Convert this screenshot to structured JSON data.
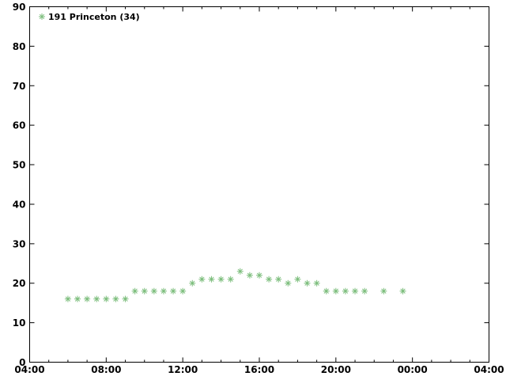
{
  "chart_data": {
    "type": "scatter",
    "title": "",
    "xlabel": "",
    "ylabel": "",
    "grid": false,
    "background": "#ffffff",
    "axis_color": "#000000",
    "text_color": "#000000",
    "x_axis": {
      "range_hours": [
        4,
        28
      ],
      "major_tick_step_hours": 4,
      "minor_tick_step_hours": 1,
      "major_tick_labels": [
        "04:00",
        "08:00",
        "12:00",
        "16:00",
        "20:00",
        "00:00",
        "04:00"
      ]
    },
    "y_axis": {
      "range": [
        0,
        90
      ],
      "tick_step": 10,
      "tick_labels": [
        "0",
        "10",
        "20",
        "30",
        "40",
        "50",
        "60",
        "70",
        "80",
        "90"
      ]
    },
    "legend": {
      "position": "top-left-inside",
      "marker": "asterisk-icon"
    },
    "series": [
      {
        "name": "191 Princeton (34)",
        "color": "#7dbe7d",
        "marker": "asterisk",
        "points": [
          [
            "06:00",
            16
          ],
          [
            "06:30",
            16
          ],
          [
            "07:00",
            16
          ],
          [
            "07:30",
            16
          ],
          [
            "08:00",
            16
          ],
          [
            "08:30",
            16
          ],
          [
            "09:00",
            16
          ],
          [
            "09:30",
            18
          ],
          [
            "10:00",
            18
          ],
          [
            "10:30",
            18
          ],
          [
            "11:00",
            18
          ],
          [
            "11:30",
            18
          ],
          [
            "12:00",
            18
          ],
          [
            "12:30",
            20
          ],
          [
            "13:00",
            21
          ],
          [
            "13:30",
            21
          ],
          [
            "14:00",
            21
          ],
          [
            "14:30",
            21
          ],
          [
            "15:00",
            23
          ],
          [
            "15:30",
            22
          ],
          [
            "16:00",
            22
          ],
          [
            "16:30",
            21
          ],
          [
            "17:00",
            21
          ],
          [
            "17:30",
            20
          ],
          [
            "18:00",
            21
          ],
          [
            "18:30",
            20
          ],
          [
            "19:00",
            20
          ],
          [
            "19:30",
            18
          ],
          [
            "20:00",
            18
          ],
          [
            "20:30",
            18
          ],
          [
            "21:00",
            18
          ],
          [
            "21:30",
            18
          ],
          [
            "22:30",
            18
          ],
          [
            "23:30",
            18
          ]
        ]
      }
    ]
  }
}
